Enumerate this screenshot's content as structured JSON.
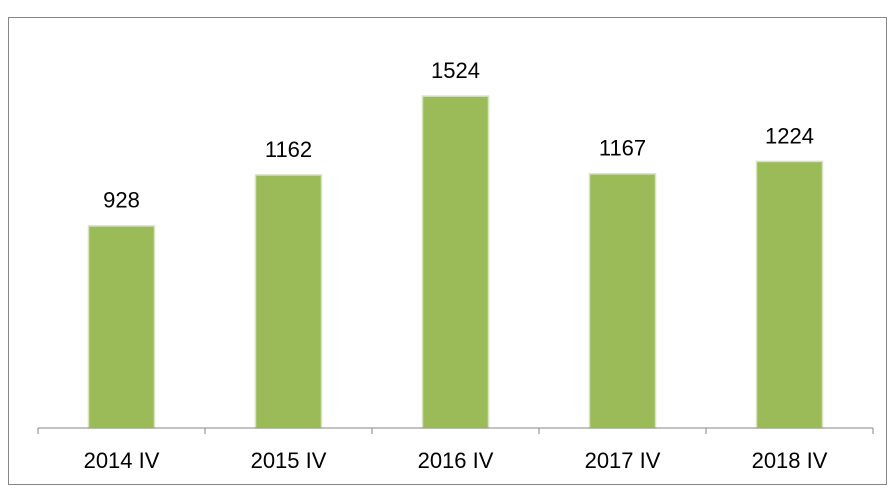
{
  "chart_data": {
    "type": "bar",
    "categories": [
      "2014 IV",
      "2015 IV",
      "2016 IV",
      "2017 IV",
      "2018 IV"
    ],
    "values": [
      928,
      1162,
      1524,
      1167,
      1224
    ],
    "color": "#9bbb59",
    "ylim": [
      0,
      1800
    ],
    "data_labels": true
  }
}
